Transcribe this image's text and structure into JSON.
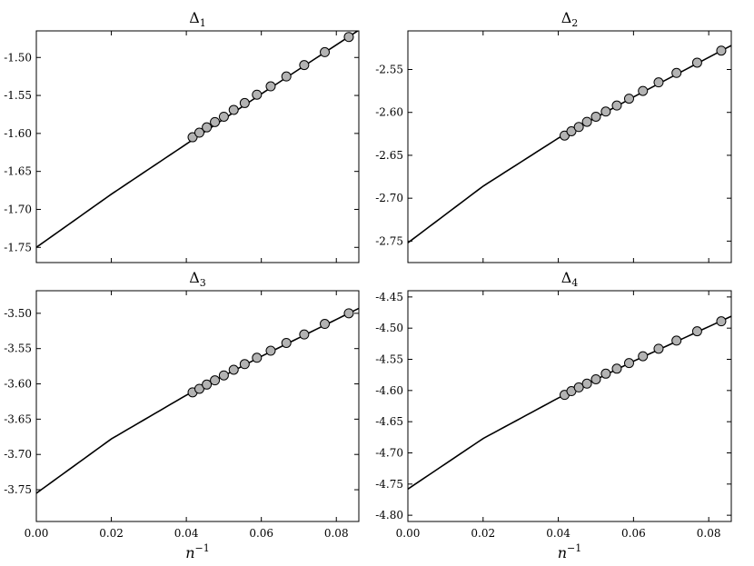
{
  "chart_data": [
    {
      "type": "scatter",
      "title": "Δ",
      "title_subscript": "1",
      "xlabel": "",
      "xlim": [
        0,
        0.086
      ],
      "ylim": [
        -1.77,
        -1.465
      ],
      "xticks": [
        "0.00",
        "0.02",
        "0.04",
        "0.06",
        "0.08"
      ],
      "yticks": [
        -1.75,
        -1.7,
        -1.65,
        -1.6,
        -1.55,
        -1.5
      ],
      "ytick_labels": [
        "-1.75",
        "-1.70",
        "-1.65",
        "-1.60",
        "-1.55",
        "-1.50"
      ],
      "show_x_tick_labels": false,
      "fit_curve": {
        "x": [
          0,
          0.02,
          0.04,
          0.06,
          0.086
        ],
        "y": [
          -1.75,
          -1.68,
          -1.614,
          -1.548,
          -1.464
        ]
      },
      "points": {
        "x": [
          0.04167,
          0.04348,
          0.04545,
          0.04762,
          0.05,
          0.05263,
          0.05556,
          0.05882,
          0.0625,
          0.06667,
          0.07143,
          0.07692,
          0.08333
        ],
        "y": [
          -1.605,
          -1.599,
          -1.592,
          -1.585,
          -1.578,
          -1.569,
          -1.56,
          -1.549,
          -1.538,
          -1.525,
          -1.51,
          -1.493,
          -1.473
        ]
      }
    },
    {
      "type": "scatter",
      "title": "Δ",
      "title_subscript": "2",
      "xlabel": "",
      "xlim": [
        0,
        0.086
      ],
      "ylim": [
        -2.775,
        -2.505
      ],
      "xticks": [
        "0.00",
        "0.02",
        "0.04",
        "0.06",
        "0.08"
      ],
      "yticks": [
        -2.75,
        -2.7,
        -2.65,
        -2.6,
        -2.55
      ],
      "ytick_labels": [
        "-2.75",
        "-2.70",
        "-2.65",
        "-2.60",
        "-2.55"
      ],
      "show_x_tick_labels": false,
      "fit_curve": {
        "x": [
          0,
          0.02,
          0.04,
          0.06,
          0.086
        ],
        "y": [
          -2.752,
          -2.686,
          -2.63,
          -2.582,
          -2.522
        ]
      },
      "points": {
        "x": [
          0.04167,
          0.04348,
          0.04545,
          0.04762,
          0.05,
          0.05263,
          0.05556,
          0.05882,
          0.0625,
          0.06667,
          0.07143,
          0.07692,
          0.08333
        ],
        "y": [
          -2.627,
          -2.622,
          -2.617,
          -2.611,
          -2.605,
          -2.599,
          -2.592,
          -2.584,
          -2.575,
          -2.565,
          -2.554,
          -2.542,
          -2.528
        ]
      }
    },
    {
      "type": "scatter",
      "title": "Δ",
      "title_subscript": "3",
      "xlabel": "n",
      "xlabel_superscript": "−1",
      "xlim": [
        0,
        0.086
      ],
      "ylim": [
        -3.795,
        -3.468
      ],
      "xticks": [
        "0.00",
        "0.02",
        "0.04",
        "0.06",
        "0.08"
      ],
      "yticks": [
        -3.75,
        -3.7,
        -3.65,
        -3.6,
        -3.55,
        -3.5
      ],
      "ytick_labels": [
        "-3.75",
        "-3.70",
        "-3.65",
        "-3.60",
        "-3.55",
        "-3.50"
      ],
      "show_x_tick_labels": true,
      "fit_curve": {
        "x": [
          0,
          0.02,
          0.04,
          0.06,
          0.086
        ],
        "y": [
          -3.755,
          -3.678,
          -3.616,
          -3.561,
          -3.493
        ]
      },
      "points": {
        "x": [
          0.04167,
          0.04348,
          0.04545,
          0.04762,
          0.05,
          0.05263,
          0.05556,
          0.05882,
          0.0625,
          0.06667,
          0.07143,
          0.07692,
          0.08333
        ],
        "y": [
          -3.612,
          -3.607,
          -3.601,
          -3.595,
          -3.588,
          -3.58,
          -3.572,
          -3.563,
          -3.553,
          -3.542,
          -3.53,
          -3.515,
          -3.5
        ]
      }
    },
    {
      "type": "scatter",
      "title": "Δ",
      "title_subscript": "4",
      "xlabel": "n",
      "xlabel_superscript": "−1",
      "xlim": [
        0,
        0.086
      ],
      "ylim": [
        -4.81,
        -4.44
      ],
      "xticks": [
        "0.00",
        "0.02",
        "0.04",
        "0.06",
        "0.08"
      ],
      "yticks": [
        -4.8,
        -4.75,
        -4.7,
        -4.65,
        -4.6,
        -4.55,
        -4.5,
        -4.45
      ],
      "ytick_labels": [
        "-4.80",
        "-4.75",
        "-4.70",
        "-4.65",
        "-4.60",
        "-4.55",
        "-4.50",
        "-4.45"
      ],
      "show_x_tick_labels": true,
      "fit_curve": {
        "x": [
          0,
          0.02,
          0.04,
          0.06,
          0.086
        ],
        "y": [
          -4.758,
          -4.677,
          -4.612,
          -4.553,
          -4.481
        ]
      },
      "points": {
        "x": [
          0.04167,
          0.04348,
          0.04545,
          0.04762,
          0.05,
          0.05263,
          0.05556,
          0.05882,
          0.0625,
          0.06667,
          0.07143,
          0.07692,
          0.08333
        ],
        "y": [
          -4.607,
          -4.601,
          -4.595,
          -4.589,
          -4.582,
          -4.573,
          -4.565,
          -4.556,
          -4.545,
          -4.533,
          -4.52,
          -4.505,
          -4.489
        ]
      }
    }
  ],
  "colors": {
    "marker_fill": "#b3b3b3",
    "marker_edge": "#000000",
    "curve": "#000000",
    "axes": "#000000"
  }
}
